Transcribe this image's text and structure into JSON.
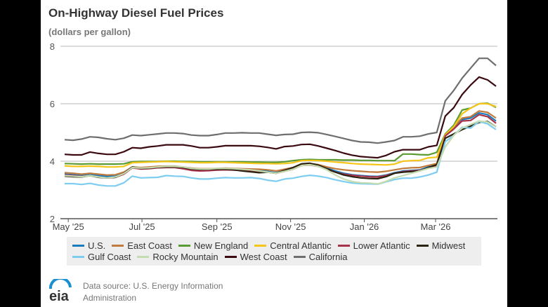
{
  "chart_data": {
    "type": "line",
    "title": "On-Highway Diesel Fuel Prices",
    "subtitle": "(dollars per gallon)",
    "xlabel": "",
    "ylabel": "",
    "ylim": [
      2,
      8
    ],
    "yticks": [
      "2",
      "4",
      "6",
      "8"
    ],
    "xticks": [
      {
        "date": "2025-05-01",
        "label": "May '25"
      },
      {
        "date": "2025-07-01",
        "label": "Jul '25"
      },
      {
        "date": "2025-09-01",
        "label": "Sep '25"
      },
      {
        "date": "2025-11-01",
        "label": "Nov '25"
      },
      {
        "date": "2026-01-01",
        "label": "Jan '26"
      },
      {
        "date": "2026-03-01",
        "label": "Mar '26"
      }
    ],
    "grid": "horizontal",
    "legend_placement": "bottom",
    "x": [
      "2025-04-28",
      "2025-05-05",
      "2025-05-12",
      "2025-05-19",
      "2025-05-26",
      "2025-06-02",
      "2025-06-09",
      "2025-06-16",
      "2025-06-23",
      "2025-06-30",
      "2025-07-07",
      "2025-07-14",
      "2025-07-21",
      "2025-07-28",
      "2025-08-04",
      "2025-08-11",
      "2025-08-18",
      "2025-08-25",
      "2025-09-01",
      "2025-09-08",
      "2025-09-15",
      "2025-09-22",
      "2025-09-29",
      "2025-10-06",
      "2025-10-13",
      "2025-10-20",
      "2025-10-27",
      "2025-11-03",
      "2025-11-10",
      "2025-11-17",
      "2025-11-24",
      "2025-12-01",
      "2025-12-08",
      "2025-12-15",
      "2025-12-22",
      "2025-12-29",
      "2026-01-05",
      "2026-01-12",
      "2026-01-19",
      "2026-01-26",
      "2026-02-02",
      "2026-02-09",
      "2026-02-16",
      "2026-02-23",
      "2026-03-02",
      "2026-03-09",
      "2026-03-16",
      "2026-03-23",
      "2026-03-30",
      "2026-04-06",
      "2026-04-13",
      "2026-04-20"
    ],
    "series": [
      {
        "name": "U.S.",
        "color": "#1a7bbd",
        "values": [
          3.55,
          3.53,
          3.5,
          3.53,
          3.5,
          3.47,
          3.48,
          3.58,
          3.77,
          3.74,
          3.75,
          3.78,
          3.8,
          3.8,
          3.77,
          3.73,
          3.71,
          3.71,
          3.72,
          3.72,
          3.71,
          3.7,
          3.69,
          3.67,
          3.65,
          3.6,
          3.68,
          3.75,
          3.88,
          3.9,
          3.85,
          3.76,
          3.66,
          3.58,
          3.53,
          3.5,
          3.48,
          3.47,
          3.52,
          3.6,
          3.66,
          3.68,
          3.7,
          3.8,
          3.88,
          4.9,
          5.15,
          5.45,
          5.5,
          5.68,
          5.62,
          5.4
        ]
      },
      {
        "name": "East Coast",
        "color": "#c07a3c",
        "values": [
          3.6,
          3.58,
          3.55,
          3.58,
          3.55,
          3.52,
          3.53,
          3.62,
          3.8,
          3.78,
          3.8,
          3.82,
          3.83,
          3.83,
          3.8,
          3.76,
          3.74,
          3.74,
          3.75,
          3.76,
          3.75,
          3.74,
          3.73,
          3.72,
          3.7,
          3.66,
          3.72,
          3.78,
          3.9,
          3.92,
          3.88,
          3.8,
          3.74,
          3.7,
          3.67,
          3.65,
          3.63,
          3.62,
          3.65,
          3.7,
          3.75,
          3.77,
          3.78,
          3.85,
          3.92,
          4.95,
          5.2,
          5.5,
          5.55,
          5.75,
          5.7,
          5.5
        ]
      },
      {
        "name": "New England",
        "color": "#5a9a32",
        "values": [
          3.92,
          3.91,
          3.9,
          3.91,
          3.9,
          3.9,
          3.9,
          3.91,
          3.98,
          3.99,
          3.99,
          3.99,
          4.0,
          4.0,
          3.99,
          3.99,
          3.98,
          3.98,
          3.98,
          3.98,
          3.98,
          3.98,
          3.97,
          3.97,
          3.96,
          3.96,
          3.98,
          4.02,
          4.05,
          4.06,
          4.05,
          4.05,
          4.05,
          4.04,
          4.04,
          4.03,
          4.03,
          4.02,
          4.02,
          4.02,
          4.25,
          4.25,
          4.23,
          4.22,
          4.31,
          4.95,
          5.25,
          5.78,
          5.85,
          6.0,
          6.02,
          5.87
        ]
      },
      {
        "name": "Central Atlantic",
        "color": "#f5c518",
        "values": [
          3.84,
          3.82,
          3.82,
          3.83,
          3.82,
          3.8,
          3.8,
          3.82,
          3.95,
          3.96,
          3.97,
          3.98,
          3.99,
          3.98,
          3.97,
          3.96,
          3.95,
          3.95,
          3.96,
          3.96,
          3.95,
          3.94,
          3.93,
          3.92,
          3.92,
          3.91,
          3.92,
          3.95,
          4.02,
          4.03,
          4.02,
          4.0,
          3.97,
          3.95,
          3.92,
          3.9,
          3.89,
          3.88,
          3.87,
          3.9,
          4.0,
          4.02,
          4.03,
          4.12,
          4.14,
          4.92,
          5.2,
          5.65,
          5.85,
          6.0,
          6.0,
          5.9
        ]
      },
      {
        "name": "Lower Atlantic",
        "color": "#a8324a",
        "values": [
          3.52,
          3.5,
          3.47,
          3.5,
          3.45,
          3.42,
          3.44,
          3.55,
          3.77,
          3.73,
          3.74,
          3.77,
          3.78,
          3.78,
          3.74,
          3.68,
          3.66,
          3.67,
          3.69,
          3.7,
          3.69,
          3.68,
          3.67,
          3.65,
          3.62,
          3.58,
          3.65,
          3.72,
          3.85,
          3.87,
          3.82,
          3.72,
          3.62,
          3.55,
          3.51,
          3.48,
          3.46,
          3.45,
          3.5,
          3.58,
          3.64,
          3.66,
          3.68,
          3.76,
          3.85,
          4.88,
          5.12,
          5.4,
          5.42,
          5.62,
          5.55,
          5.32
        ]
      },
      {
        "name": "Midwest",
        "color": "#2b2210",
        "values": [
          3.48,
          3.46,
          3.45,
          3.5,
          3.44,
          3.42,
          3.44,
          3.58,
          3.8,
          3.75,
          3.76,
          3.79,
          3.8,
          3.8,
          3.78,
          3.73,
          3.71,
          3.72,
          3.72,
          3.72,
          3.7,
          3.66,
          3.63,
          3.6,
          3.62,
          3.58,
          3.68,
          3.78,
          3.91,
          3.93,
          3.86,
          3.74,
          3.62,
          3.52,
          3.46,
          3.42,
          3.4,
          3.39,
          3.46,
          3.58,
          3.62,
          3.64,
          3.66,
          3.78,
          3.88,
          4.8,
          4.95,
          5.1,
          5.22,
          5.35,
          5.38,
          5.2
        ]
      },
      {
        "name": "Gulf Coast",
        "color": "#7dcdf0",
        "values": [
          3.22,
          3.22,
          3.19,
          3.23,
          3.17,
          3.14,
          3.14,
          3.25,
          3.48,
          3.42,
          3.43,
          3.44,
          3.5,
          3.48,
          3.47,
          3.42,
          3.38,
          3.38,
          3.41,
          3.43,
          3.42,
          3.42,
          3.43,
          3.4,
          3.34,
          3.3,
          3.38,
          3.41,
          3.47,
          3.51,
          3.48,
          3.43,
          3.35,
          3.29,
          3.24,
          3.22,
          3.21,
          3.2,
          3.28,
          3.36,
          3.41,
          3.41,
          3.45,
          3.52,
          3.62,
          4.68,
          4.9,
          5.18,
          5.15,
          5.38,
          5.3,
          5.1
        ]
      },
      {
        "name": "Rocky Mountain",
        "color": "#c5dbb0",
        "values": [
          3.5,
          3.48,
          3.46,
          3.5,
          3.45,
          3.42,
          3.45,
          3.57,
          3.78,
          3.76,
          3.77,
          3.8,
          3.82,
          3.82,
          3.8,
          3.75,
          3.73,
          3.73,
          3.75,
          3.75,
          3.74,
          3.72,
          3.7,
          3.66,
          3.62,
          3.58,
          3.65,
          3.72,
          3.85,
          3.88,
          3.82,
          3.7,
          3.52,
          3.38,
          3.29,
          3.25,
          3.24,
          3.21,
          3.3,
          3.42,
          3.5,
          3.58,
          3.66,
          3.75,
          3.8,
          4.5,
          4.9,
          5.15,
          5.28,
          5.4,
          5.36,
          5.2
        ]
      },
      {
        "name": "West Coast",
        "color": "#3a0a10",
        "values": [
          4.24,
          4.22,
          4.22,
          4.32,
          4.27,
          4.24,
          4.24,
          4.33,
          4.47,
          4.45,
          4.5,
          4.53,
          4.57,
          4.57,
          4.57,
          4.53,
          4.47,
          4.47,
          4.5,
          4.54,
          4.54,
          4.54,
          4.54,
          4.52,
          4.48,
          4.43,
          4.51,
          4.53,
          4.58,
          4.59,
          4.53,
          4.45,
          4.37,
          4.28,
          4.21,
          4.16,
          4.14,
          4.12,
          4.2,
          4.33,
          4.4,
          4.4,
          4.4,
          4.5,
          4.55,
          5.57,
          5.86,
          6.32,
          6.65,
          6.93,
          6.83,
          6.61
        ]
      },
      {
        "name": "California",
        "color": "#6e6e6e",
        "values": [
          4.75,
          4.73,
          4.77,
          4.85,
          4.83,
          4.78,
          4.75,
          4.8,
          4.91,
          4.89,
          4.92,
          4.95,
          4.98,
          4.98,
          4.96,
          4.91,
          4.89,
          4.89,
          4.93,
          4.98,
          4.98,
          4.99,
          4.98,
          4.98,
          4.94,
          4.9,
          4.93,
          4.94,
          5.0,
          5.01,
          4.99,
          4.93,
          4.86,
          4.79,
          4.72,
          4.67,
          4.66,
          4.63,
          4.67,
          4.72,
          4.85,
          4.85,
          4.87,
          4.95,
          5.0,
          6.1,
          6.46,
          6.89,
          7.24,
          7.58,
          7.58,
          7.33
        ]
      }
    ],
    "legend_rows": [
      [
        0,
        1,
        2,
        3,
        4,
        5
      ],
      [
        6,
        7,
        8,
        9
      ]
    ]
  },
  "footer": {
    "logo_text": "eia",
    "source_line1": "Data source: U.S. Energy Information",
    "source_line2": "Administration"
  }
}
